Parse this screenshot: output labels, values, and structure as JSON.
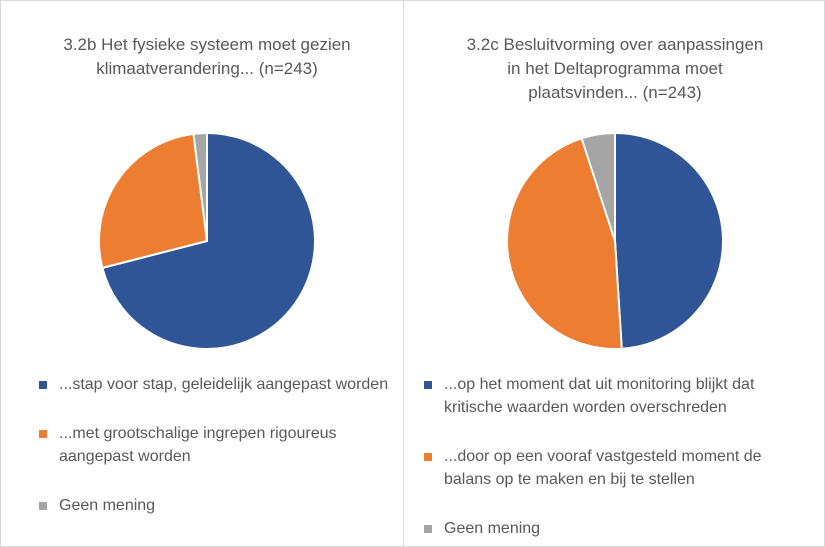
{
  "chart_data": [
    {
      "type": "pie",
      "title": "3.2b Het fysieke systeem moet gezien klimaatverandering... (n=243)",
      "categories": [
        "...stap voor stap, geleidelijk aangepast worden",
        "...met grootschalige ingrepen rigoureus aangepast worden",
        "Geen mening"
      ],
      "values": [
        71,
        27,
        2
      ],
      "colors": [
        "#2f5597",
        "#ed7d31",
        "#a5a5a5"
      ]
    },
    {
      "type": "pie",
      "title": "3.2c Besluitvorming over aanpassingen in het Deltaprogramma moet plaatsvinden... (n=243)",
      "categories": [
        "...op het moment dat uit monitoring blijkt dat kritische waarden worden overschreden",
        "...door op een vooraf vastgesteld moment de balans op te maken en bij te stellen",
        "Geen mening"
      ],
      "values": [
        49,
        46,
        5
      ],
      "colors": [
        "#2f5597",
        "#ed7d31",
        "#a5a5a5"
      ]
    }
  ]
}
